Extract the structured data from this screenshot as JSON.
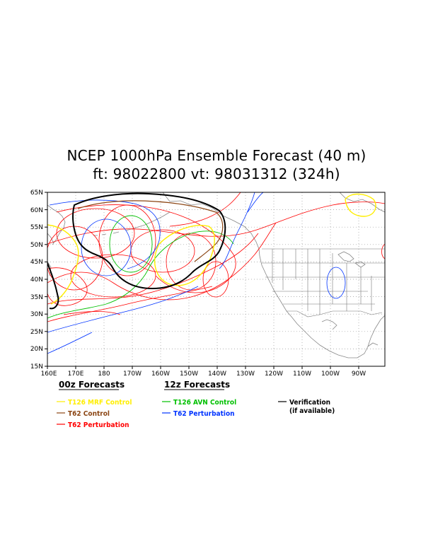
{
  "title_line1": "NCEP 1000hPa Ensemble Forecast (40 m)",
  "title_line2": "ft: 98022800  vt: 98031312 (324h)",
  "lat_labels": [
    "65N",
    "60N",
    "55N",
    "50N",
    "45N",
    "40N",
    "35N",
    "30N",
    "25N",
    "20N",
    "15N"
  ],
  "lon_labels": [
    "160E",
    "170E",
    "180",
    "170W",
    "160W",
    "150W",
    "140W",
    "130W",
    "120W",
    "110W",
    "100W",
    "90W"
  ],
  "legend": {
    "group00_title": "00z Forecasts",
    "group12_title": "12z Forecasts",
    "items": {
      "t126_mrf": "T126 MRF Control",
      "t62_control": "T62 Control",
      "t62_perturbation": "T62 Perturbation",
      "t126_avn": "T126 AVN Control",
      "t62_pert12": "T62 Perturbation",
      "verification": "Verification",
      "verification_note": "(if available)"
    }
  },
  "colors": {
    "mrf": "#ffee00",
    "control": "#8b4513",
    "perturbation": "#ff0000",
    "avn": "#00c000",
    "pert12": "#0033ff",
    "verification": "#000000",
    "land": "#888888",
    "border": "#777777",
    "grid": "#999999"
  }
}
